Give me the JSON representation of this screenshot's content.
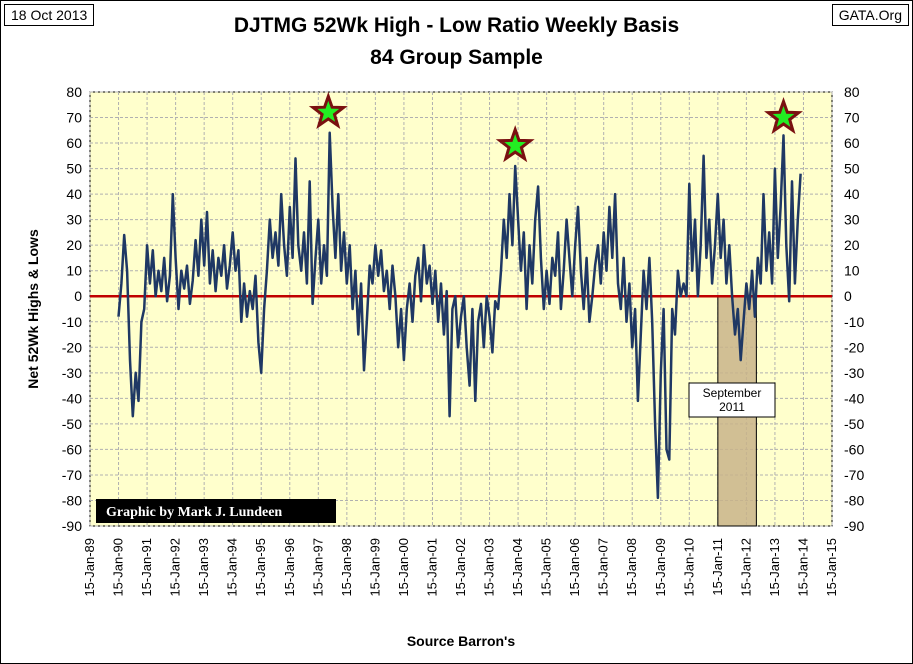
{
  "date": "18 Oct 2013",
  "source_tag": "GATA.Org",
  "chart_data": {
    "type": "line",
    "title": "DJTMG 52Wk High - Low Ratio Weekly Basis",
    "subtitle": "84 Group Sample",
    "ylabel": "Net 52Wk Highs & Lows",
    "xlabel": "Source Barron's",
    "ylim": [
      -90,
      80
    ],
    "yticks": [
      80,
      70,
      60,
      50,
      40,
      30,
      20,
      10,
      0,
      -10,
      -20,
      -30,
      -40,
      -50,
      -60,
      -70,
      -80,
      -90
    ],
    "xlim": [
      1989,
      2015
    ],
    "xticks": [
      "15-Jan-89",
      "15-Jan-90",
      "15-Jan-91",
      "15-Jan-92",
      "15-Jan-93",
      "15-Jan-94",
      "15-Jan-95",
      "15-Jan-96",
      "15-Jan-97",
      "15-Jan-98",
      "15-Jan-99",
      "15-Jan-00",
      "15-Jan-01",
      "15-Jan-02",
      "15-Jan-03",
      "15-Jan-04",
      "15-Jan-05",
      "15-Jan-06",
      "15-Jan-07",
      "15-Jan-08",
      "15-Jan-09",
      "15-Jan-10",
      "15-Jan-11",
      "15-Jan-12",
      "15-Jan-13",
      "15-Jan-14",
      "15-Jan-15"
    ],
    "zero_line_color": "#c00000",
    "series_color": "#1f3864",
    "plot_background": "#ffffcc",
    "grid": true,
    "credit": "Graphic by Mark J. Lundeen",
    "annotation": {
      "line1": "September",
      "line2": "2011",
      "span": [
        2011.0,
        2012.35
      ]
    },
    "stars": [
      {
        "x": 1997.35,
        "y": 72
      },
      {
        "x": 2003.9,
        "y": 59
      },
      {
        "x": 2013.3,
        "y": 70
      }
    ],
    "points": [
      [
        1990.0,
        -8
      ],
      [
        1990.1,
        5
      ],
      [
        1990.2,
        24
      ],
      [
        1990.3,
        10
      ],
      [
        1990.4,
        -25
      ],
      [
        1990.5,
        -47
      ],
      [
        1990.6,
        -30
      ],
      [
        1990.7,
        -41
      ],
      [
        1990.8,
        -10
      ],
      [
        1990.9,
        -5
      ],
      [
        1991.0,
        20
      ],
      [
        1991.1,
        5
      ],
      [
        1991.2,
        18
      ],
      [
        1991.3,
        0
      ],
      [
        1991.4,
        10
      ],
      [
        1991.5,
        2
      ],
      [
        1991.6,
        15
      ],
      [
        1991.7,
        -2
      ],
      [
        1991.8,
        8
      ],
      [
        1991.9,
        40
      ],
      [
        1992.0,
        15
      ],
      [
        1992.1,
        -5
      ],
      [
        1992.2,
        10
      ],
      [
        1992.3,
        3
      ],
      [
        1992.4,
        12
      ],
      [
        1992.5,
        -3
      ],
      [
        1992.6,
        6
      ],
      [
        1992.7,
        22
      ],
      [
        1992.8,
        8
      ],
      [
        1992.9,
        30
      ],
      [
        1993.0,
        12
      ],
      [
        1993.1,
        33
      ],
      [
        1993.2,
        5
      ],
      [
        1993.3,
        18
      ],
      [
        1993.4,
        2
      ],
      [
        1993.5,
        15
      ],
      [
        1993.6,
        8
      ],
      [
        1993.7,
        20
      ],
      [
        1993.8,
        3
      ],
      [
        1993.9,
        12
      ],
      [
        1994.0,
        25
      ],
      [
        1994.1,
        10
      ],
      [
        1994.2,
        18
      ],
      [
        1994.3,
        -10
      ],
      [
        1994.4,
        5
      ],
      [
        1994.5,
        -8
      ],
      [
        1994.6,
        2
      ],
      [
        1994.7,
        -5
      ],
      [
        1994.8,
        8
      ],
      [
        1994.9,
        -18
      ],
      [
        1995.0,
        -30
      ],
      [
        1995.1,
        -5
      ],
      [
        1995.2,
        10
      ],
      [
        1995.3,
        30
      ],
      [
        1995.4,
        15
      ],
      [
        1995.5,
        25
      ],
      [
        1995.6,
        12
      ],
      [
        1995.7,
        40
      ],
      [
        1995.8,
        20
      ],
      [
        1995.9,
        8
      ],
      [
        1996.0,
        35
      ],
      [
        1996.1,
        15
      ],
      [
        1996.2,
        54
      ],
      [
        1996.3,
        20
      ],
      [
        1996.4,
        10
      ],
      [
        1996.5,
        25
      ],
      [
        1996.6,
        5
      ],
      [
        1996.7,
        45
      ],
      [
        1996.8,
        -3
      ],
      [
        1996.9,
        15
      ],
      [
        1997.0,
        30
      ],
      [
        1997.1,
        5
      ],
      [
        1997.2,
        20
      ],
      [
        1997.3,
        8
      ],
      [
        1997.4,
        64
      ],
      [
        1997.5,
        35
      ],
      [
        1997.6,
        15
      ],
      [
        1997.7,
        40
      ],
      [
        1997.8,
        10
      ],
      [
        1997.9,
        25
      ],
      [
        1998.0,
        5
      ],
      [
        1998.1,
        20
      ],
      [
        1998.2,
        -5
      ],
      [
        1998.3,
        10
      ],
      [
        1998.4,
        -15
      ],
      [
        1998.5,
        5
      ],
      [
        1998.6,
        -29
      ],
      [
        1998.7,
        -10
      ],
      [
        1998.8,
        12
      ],
      [
        1998.9,
        5
      ],
      [
        1999.0,
        20
      ],
      [
        1999.1,
        8
      ],
      [
        1999.2,
        18
      ],
      [
        1999.3,
        2
      ],
      [
        1999.4,
        10
      ],
      [
        1999.5,
        -5
      ],
      [
        1999.6,
        12
      ],
      [
        1999.7,
        0
      ],
      [
        1999.8,
        -20
      ],
      [
        1999.9,
        -5
      ],
      [
        2000.0,
        -25
      ],
      [
        2000.1,
        -5
      ],
      [
        2000.2,
        5
      ],
      [
        2000.3,
        -10
      ],
      [
        2000.4,
        8
      ],
      [
        2000.5,
        15
      ],
      [
        2000.6,
        -2
      ],
      [
        2000.7,
        20
      ],
      [
        2000.8,
        5
      ],
      [
        2000.9,
        12
      ],
      [
        2001.0,
        -3
      ],
      [
        2001.1,
        10
      ],
      [
        2001.2,
        -10
      ],
      [
        2001.3,
        5
      ],
      [
        2001.4,
        -15
      ],
      [
        2001.5,
        2
      ],
      [
        2001.6,
        -47
      ],
      [
        2001.7,
        -5
      ],
      [
        2001.8,
        0
      ],
      [
        2001.9,
        -20
      ],
      [
        2002.0,
        -8
      ],
      [
        2002.1,
        0
      ],
      [
        2002.2,
        -20
      ],
      [
        2002.3,
        -35
      ],
      [
        2002.4,
        -5
      ],
      [
        2002.5,
        -41
      ],
      [
        2002.6,
        -10
      ],
      [
        2002.7,
        -3
      ],
      [
        2002.8,
        -20
      ],
      [
        2002.9,
        0
      ],
      [
        2003.0,
        -8
      ],
      [
        2003.1,
        -22
      ],
      [
        2003.2,
        -2
      ],
      [
        2003.3,
        -5
      ],
      [
        2003.4,
        10
      ],
      [
        2003.5,
        30
      ],
      [
        2003.6,
        15
      ],
      [
        2003.7,
        40
      ],
      [
        2003.8,
        20
      ],
      [
        2003.9,
        51
      ],
      [
        2004.0,
        30
      ],
      [
        2004.1,
        10
      ],
      [
        2004.2,
        25
      ],
      [
        2004.3,
        -5
      ],
      [
        2004.4,
        20
      ],
      [
        2004.5,
        5
      ],
      [
        2004.6,
        30
      ],
      [
        2004.7,
        43
      ],
      [
        2004.8,
        15
      ],
      [
        2004.9,
        -5
      ],
      [
        2005.0,
        10
      ],
      [
        2005.1,
        -3
      ],
      [
        2005.2,
        15
      ],
      [
        2005.3,
        8
      ],
      [
        2005.4,
        25
      ],
      [
        2005.5,
        -5
      ],
      [
        2005.6,
        10
      ],
      [
        2005.7,
        30
      ],
      [
        2005.8,
        15
      ],
      [
        2005.9,
        0
      ],
      [
        2006.0,
        20
      ],
      [
        2006.1,
        35
      ],
      [
        2006.2,
        10
      ],
      [
        2006.3,
        -5
      ],
      [
        2006.4,
        15
      ],
      [
        2006.5,
        -10
      ],
      [
        2006.6,
        0
      ],
      [
        2006.7,
        12
      ],
      [
        2006.8,
        20
      ],
      [
        2006.9,
        5
      ],
      [
        2007.0,
        25
      ],
      [
        2007.1,
        10
      ],
      [
        2007.2,
        35
      ],
      [
        2007.3,
        15
      ],
      [
        2007.4,
        40
      ],
      [
        2007.5,
        5
      ],
      [
        2007.6,
        -5
      ],
      [
        2007.7,
        15
      ],
      [
        2007.8,
        -10
      ],
      [
        2007.9,
        5
      ],
      [
        2008.0,
        -20
      ],
      [
        2008.1,
        -5
      ],
      [
        2008.2,
        -41
      ],
      [
        2008.3,
        -15
      ],
      [
        2008.4,
        10
      ],
      [
        2008.5,
        -5
      ],
      [
        2008.6,
        15
      ],
      [
        2008.7,
        -10
      ],
      [
        2008.8,
        -50
      ],
      [
        2008.9,
        -79
      ],
      [
        2009.0,
        -30
      ],
      [
        2009.1,
        -5
      ],
      [
        2009.2,
        -60
      ],
      [
        2009.3,
        -64
      ],
      [
        2009.4,
        -5
      ],
      [
        2009.5,
        -15
      ],
      [
        2009.6,
        10
      ],
      [
        2009.7,
        0
      ],
      [
        2009.8,
        5
      ],
      [
        2009.9,
        0
      ],
      [
        2010.0,
        44
      ],
      [
        2010.1,
        10
      ],
      [
        2010.2,
        30
      ],
      [
        2010.3,
        0
      ],
      [
        2010.4,
        20
      ],
      [
        2010.5,
        55
      ],
      [
        2010.6,
        15
      ],
      [
        2010.7,
        30
      ],
      [
        2010.8,
        5
      ],
      [
        2010.9,
        20
      ],
      [
        2011.0,
        40
      ],
      [
        2011.1,
        15
      ],
      [
        2011.2,
        30
      ],
      [
        2011.3,
        5
      ],
      [
        2011.4,
        20
      ],
      [
        2011.5,
        0
      ],
      [
        2011.6,
        -15
      ],
      [
        2011.7,
        -5
      ],
      [
        2011.8,
        -25
      ],
      [
        2011.9,
        -10
      ],
      [
        2012.0,
        5
      ],
      [
        2012.1,
        -5
      ],
      [
        2012.2,
        10
      ],
      [
        2012.3,
        -8
      ],
      [
        2012.4,
        15
      ],
      [
        2012.5,
        5
      ],
      [
        2012.6,
        40
      ],
      [
        2012.7,
        10
      ],
      [
        2012.8,
        25
      ],
      [
        2012.9,
        5
      ],
      [
        2013.0,
        50
      ],
      [
        2013.1,
        15
      ],
      [
        2013.2,
        35
      ],
      [
        2013.3,
        63
      ],
      [
        2013.4,
        20
      ],
      [
        2013.5,
        -2
      ],
      [
        2013.6,
        45
      ],
      [
        2013.7,
        5
      ],
      [
        2013.8,
        30
      ],
      [
        2013.9,
        48
      ]
    ]
  }
}
